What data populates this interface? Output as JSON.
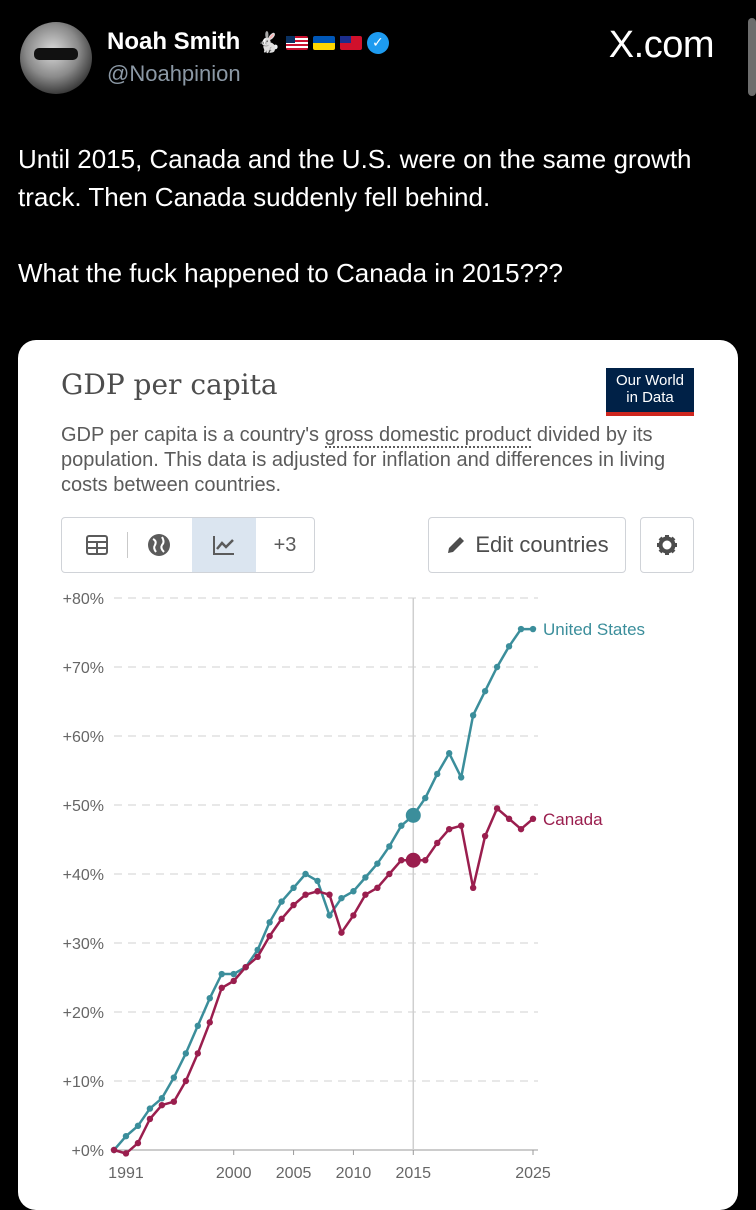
{
  "post": {
    "author_name": "Noah Smith",
    "handle": "@Noahpinion",
    "site": "X.com",
    "text_line1": "Until 2015, Canada and the U.S. were on the same growth track. Then Canada suddenly fell behind.",
    "text_line2": "What the fuck happened to Canada in 2015???",
    "icons": [
      "avatar",
      "rabbit-emoji",
      "us-flag",
      "ukraine-flag",
      "taiwan-flag",
      "verified-badge"
    ]
  },
  "card": {
    "title": "GDP per capita",
    "logo_line1": "Our World",
    "logo_line2": "in Data",
    "desc_pre": "GDP per capita is a country's ",
    "desc_link": "gross domestic product",
    "desc_post": " divided by its population. This data is adjusted for inflation and differences in living costs between countries.",
    "toolbar": {
      "more_label": "+3",
      "edit_label": "Edit countries"
    },
    "colors": {
      "us": "#3b8e9b",
      "canada": "#9a1e4e",
      "logo_bg": "#002147",
      "logo_accent": "#ce261e"
    }
  },
  "chart_data": {
    "type": "line",
    "ylim": [
      0,
      80
    ],
    "yticks": [
      "+0%",
      "+10%",
      "+20%",
      "+30%",
      "+40%",
      "+50%",
      "+60%",
      "+70%",
      "+80%"
    ],
    "xticks": [
      "1991",
      "2000",
      "2005",
      "2010",
      "2015",
      "2025"
    ],
    "highlight_year": 2015,
    "series": [
      {
        "name": "United States",
        "x": [
          1990,
          1991,
          1992,
          1993,
          1994,
          1995,
          1996,
          1997,
          1998,
          1999,
          2000,
          2001,
          2002,
          2003,
          2004,
          2005,
          2006,
          2007,
          2008,
          2009,
          2010,
          2011,
          2012,
          2013,
          2014,
          2015,
          2016,
          2017,
          2018,
          2019,
          2020,
          2021,
          2022,
          2023,
          2024,
          2025
        ],
        "values": [
          0,
          2,
          3.5,
          6,
          7.5,
          10.5,
          14,
          18,
          22,
          25.5,
          25.5,
          26.5,
          29,
          33,
          36,
          38,
          40,
          39,
          34,
          36.5,
          37.5,
          39.5,
          41.5,
          44,
          47,
          48.5,
          51,
          54.5,
          57.5,
          54,
          63,
          66.5,
          70,
          73,
          75.5,
          75.5
        ]
      },
      {
        "name": "Canada",
        "x": [
          1990,
          1991,
          1992,
          1993,
          1994,
          1995,
          1996,
          1997,
          1998,
          1999,
          2000,
          2001,
          2002,
          2003,
          2004,
          2005,
          2006,
          2007,
          2008,
          2009,
          2010,
          2011,
          2012,
          2013,
          2014,
          2015,
          2016,
          2017,
          2018,
          2019,
          2020,
          2021,
          2022,
          2023,
          2024,
          2025
        ],
        "values": [
          0,
          -0.5,
          1,
          4.5,
          6.5,
          7,
          10,
          14,
          18.5,
          23.5,
          24.5,
          26.5,
          28,
          31,
          33.5,
          35.5,
          37,
          37.5,
          37,
          31.5,
          34,
          37,
          38,
          40,
          42,
          42,
          42,
          44.5,
          46.5,
          47,
          38,
          45.5,
          49.5,
          48,
          46.5,
          48
        ]
      }
    ]
  }
}
